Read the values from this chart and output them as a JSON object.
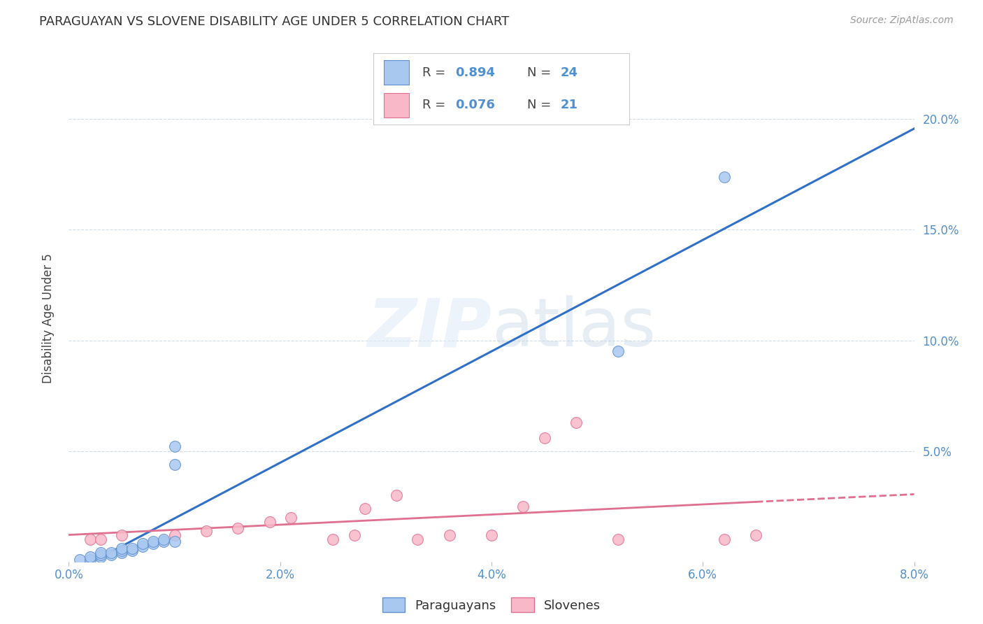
{
  "title": "PARAGUAYAN VS SLOVENE DISABILITY AGE UNDER 5 CORRELATION CHART",
  "source": "Source: ZipAtlas.com",
  "ylabel": "Disability Age Under 5",
  "background_color": "#ffffff",
  "paraguayan": {
    "x": [
      0.001,
      0.002,
      0.002,
      0.003,
      0.003,
      0.003,
      0.004,
      0.004,
      0.005,
      0.005,
      0.005,
      0.006,
      0.006,
      0.007,
      0.007,
      0.008,
      0.008,
      0.009,
      0.009,
      0.01,
      0.01,
      0.01,
      0.052,
      0.062
    ],
    "y": [
      0.001,
      0.001,
      0.002,
      0.002,
      0.003,
      0.004,
      0.003,
      0.004,
      0.004,
      0.005,
      0.006,
      0.005,
      0.006,
      0.007,
      0.008,
      0.008,
      0.009,
      0.009,
      0.01,
      0.009,
      0.044,
      0.052,
      0.095,
      0.174
    ],
    "R": 0.894,
    "N": 24,
    "scatter_color": "#a8c8f0",
    "scatter_edge": "#6090d0",
    "line_color": "#3070c8"
  },
  "slovene": {
    "x": [
      0.002,
      0.003,
      0.005,
      0.01,
      0.013,
      0.016,
      0.019,
      0.021,
      0.025,
      0.027,
      0.028,
      0.031,
      0.033,
      0.036,
      0.04,
      0.043,
      0.045,
      0.048,
      0.052,
      0.062,
      0.065
    ],
    "y": [
      0.01,
      0.01,
      0.012,
      0.012,
      0.014,
      0.015,
      0.018,
      0.02,
      0.01,
      0.012,
      0.024,
      0.03,
      0.01,
      0.012,
      0.012,
      0.025,
      0.056,
      0.063,
      0.01,
      0.01,
      0.012
    ],
    "R": 0.076,
    "N": 21,
    "scatter_color": "#f8b8c8",
    "scatter_edge": "#e07090",
    "line_color": "#e07090"
  },
  "xlim": [
    0.0,
    0.08
  ],
  "ylim": [
    0.0,
    0.22
  ],
  "yticks": [
    0.05,
    0.1,
    0.15,
    0.2
  ],
  "ytick_labels": [
    "5.0%",
    "10.0%",
    "15.0%",
    "20.0%"
  ],
  "xticks": [
    0.0,
    0.02,
    0.04,
    0.06,
    0.08
  ],
  "xtick_labels": [
    "0.0%",
    "2.0%",
    "4.0%",
    "6.0%",
    "8.0%"
  ],
  "tick_color": "#5090d0",
  "grid_color": "#d0dce8",
  "title_fontsize": 13,
  "source_fontsize": 10,
  "axis_fontsize": 12,
  "legend_fontsize": 13
}
